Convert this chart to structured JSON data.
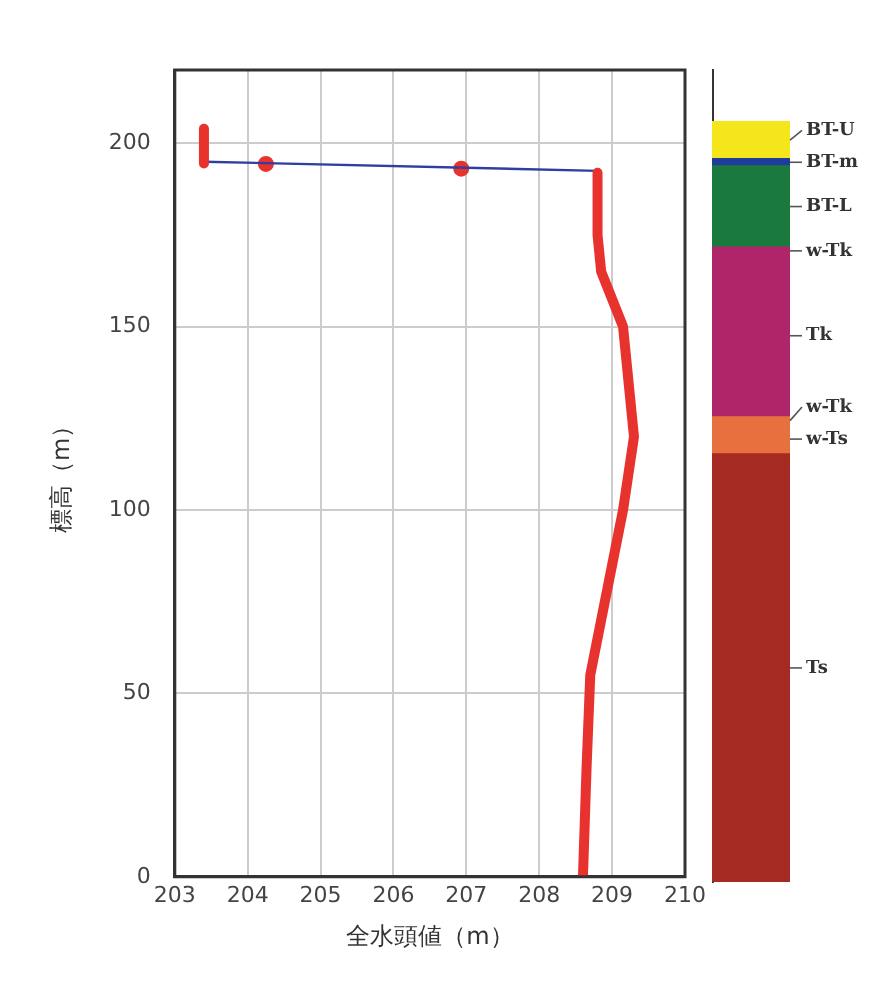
{
  "chart_data": [
    {
      "type": "line",
      "xlabel": "全水頭値（m）",
      "ylabel": "標高（m）",
      "xlim": [
        203,
        210
      ],
      "xticks": [
        203,
        204,
        205,
        206,
        207,
        208,
        209,
        210
      ],
      "ylim": [
        0,
        220
      ],
      "yticks": [
        0,
        50,
        100,
        150,
        200
      ],
      "grid": true,
      "legend": false,
      "marker": "none",
      "line_style": "solid",
      "series": [
        {
          "color": "#e8322e",
          "x": [
            208.6,
            208.65,
            208.7,
            208.85,
            209.15,
            209.3,
            209.15,
            208.85,
            208.8,
            208.8
          ],
          "values": [
            0,
            30,
            55,
            70,
            100,
            120,
            150,
            165,
            175,
            192
          ]
        },
        {
          "color": "#e8322e",
          "x": [
            203.4,
            203.4
          ],
          "values": [
            194.5,
            204
          ]
        },
        {
          "color": "#2f3f9f",
          "x": [
            203.4,
            208.8
          ],
          "values": [
            195,
            192.5
          ]
        },
        {
          "type": "scatter",
          "marker": "circle",
          "color": "#e8322e",
          "x": [
            204.25,
            206.93
          ],
          "values": [
            194.4,
            193.1
          ]
        }
      ]
    },
    {
      "type": "bar",
      "stacked": true,
      "categories": [
        null
      ],
      "ylim": [
        0,
        220
      ],
      "tick_labels": false,
      "legend": false,
      "series": [
        {
          "name": "Ts",
          "color": "#a52a22",
          "values": [
            116
          ]
        },
        {
          "name": "w-Ts",
          "color": "#e8703e",
          "values": [
            8
          ]
        },
        {
          "name": "w-Tk",
          "color": "#e8703e",
          "values": [
            2
          ]
        },
        {
          "name": "Tk",
          "color": "#b0256a",
          "values": [
            44
          ]
        },
        {
          "name": "w-Tk",
          "color": "#b0256a",
          "values": [
            2
          ]
        },
        {
          "name": "BT-L",
          "color": "#1a7a3e",
          "values": [
            22
          ]
        },
        {
          "name": "BT-m",
          "color": "#1f3c9c",
          "values": [
            2
          ]
        },
        {
          "name": "BT-U",
          "color": "#f5e51b",
          "values": [
            10
          ]
        }
      ]
    }
  ]
}
